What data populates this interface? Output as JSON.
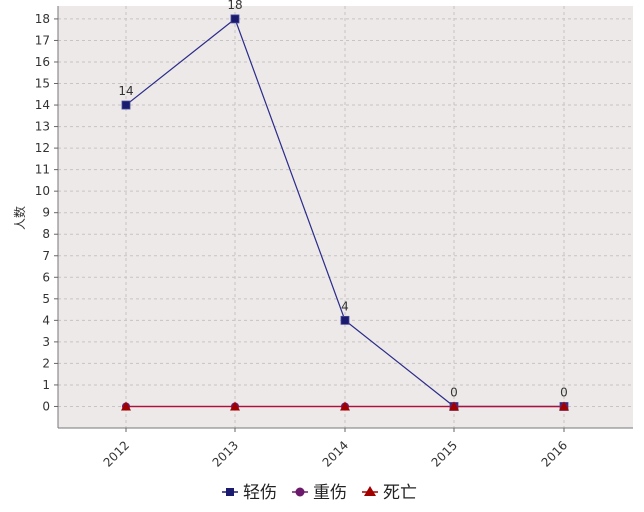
{
  "chart_data": {
    "type": "line",
    "title": "",
    "xlabel": "",
    "ylabel": "人数",
    "categories": [
      "2012",
      "2013",
      "2014",
      "2015",
      "2016"
    ],
    "ylim": [
      -1,
      18.6
    ],
    "yticks": [
      0,
      1,
      2,
      3,
      4,
      5,
      6,
      7,
      8,
      9,
      10,
      11,
      12,
      13,
      14,
      15,
      16,
      17,
      18
    ],
    "grid": true,
    "legend_position": "bottom",
    "series": [
      {
        "name": "轻伤",
        "values": [
          14,
          18,
          4,
          0,
          0
        ],
        "color": "#1a1a6e",
        "marker": "square"
      },
      {
        "name": "重伤",
        "values": [
          0,
          0,
          0,
          0,
          0
        ],
        "color": "#6b1a6b",
        "marker": "circle"
      },
      {
        "name": "死亡",
        "values": [
          0,
          0,
          0,
          0,
          0
        ],
        "color": "#a00000",
        "marker": "triangle"
      }
    ],
    "data_labels": [
      "14",
      "18",
      "4",
      "0",
      "0",
      "0",
      "0",
      "0",
      "0",
      "0"
    ],
    "plot_background": "#ece9e8",
    "line_colors": {
      "series1": "#2b2b8a",
      "series2": "#b0103a"
    }
  }
}
